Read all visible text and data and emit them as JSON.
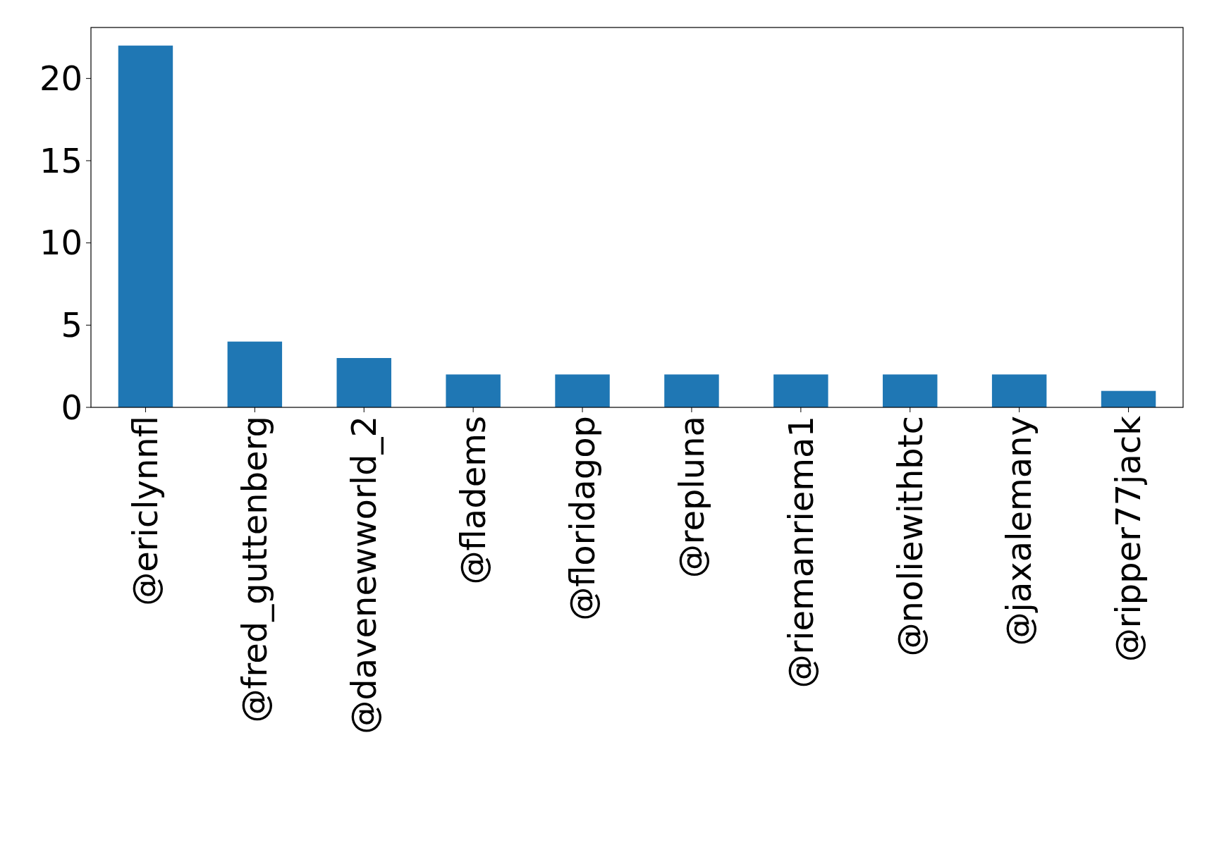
{
  "chart_data": {
    "type": "bar",
    "categories": [
      "@ericlynnfl",
      "@fred_guttenberg",
      "@davenewworld_2",
      "@fladems",
      "@floridagop",
      "@repluna",
      "@riemanriema1",
      "@noliewithbtc",
      "@jaxalemany",
      "@ripper77jack"
    ],
    "values": [
      22,
      4,
      3,
      2,
      2,
      2,
      2,
      2,
      2,
      1
    ],
    "color": "#1f77b4",
    "ylim": [
      0,
      23.1
    ],
    "yticks": [
      0,
      5,
      10,
      15,
      20
    ],
    "grid": false
  }
}
